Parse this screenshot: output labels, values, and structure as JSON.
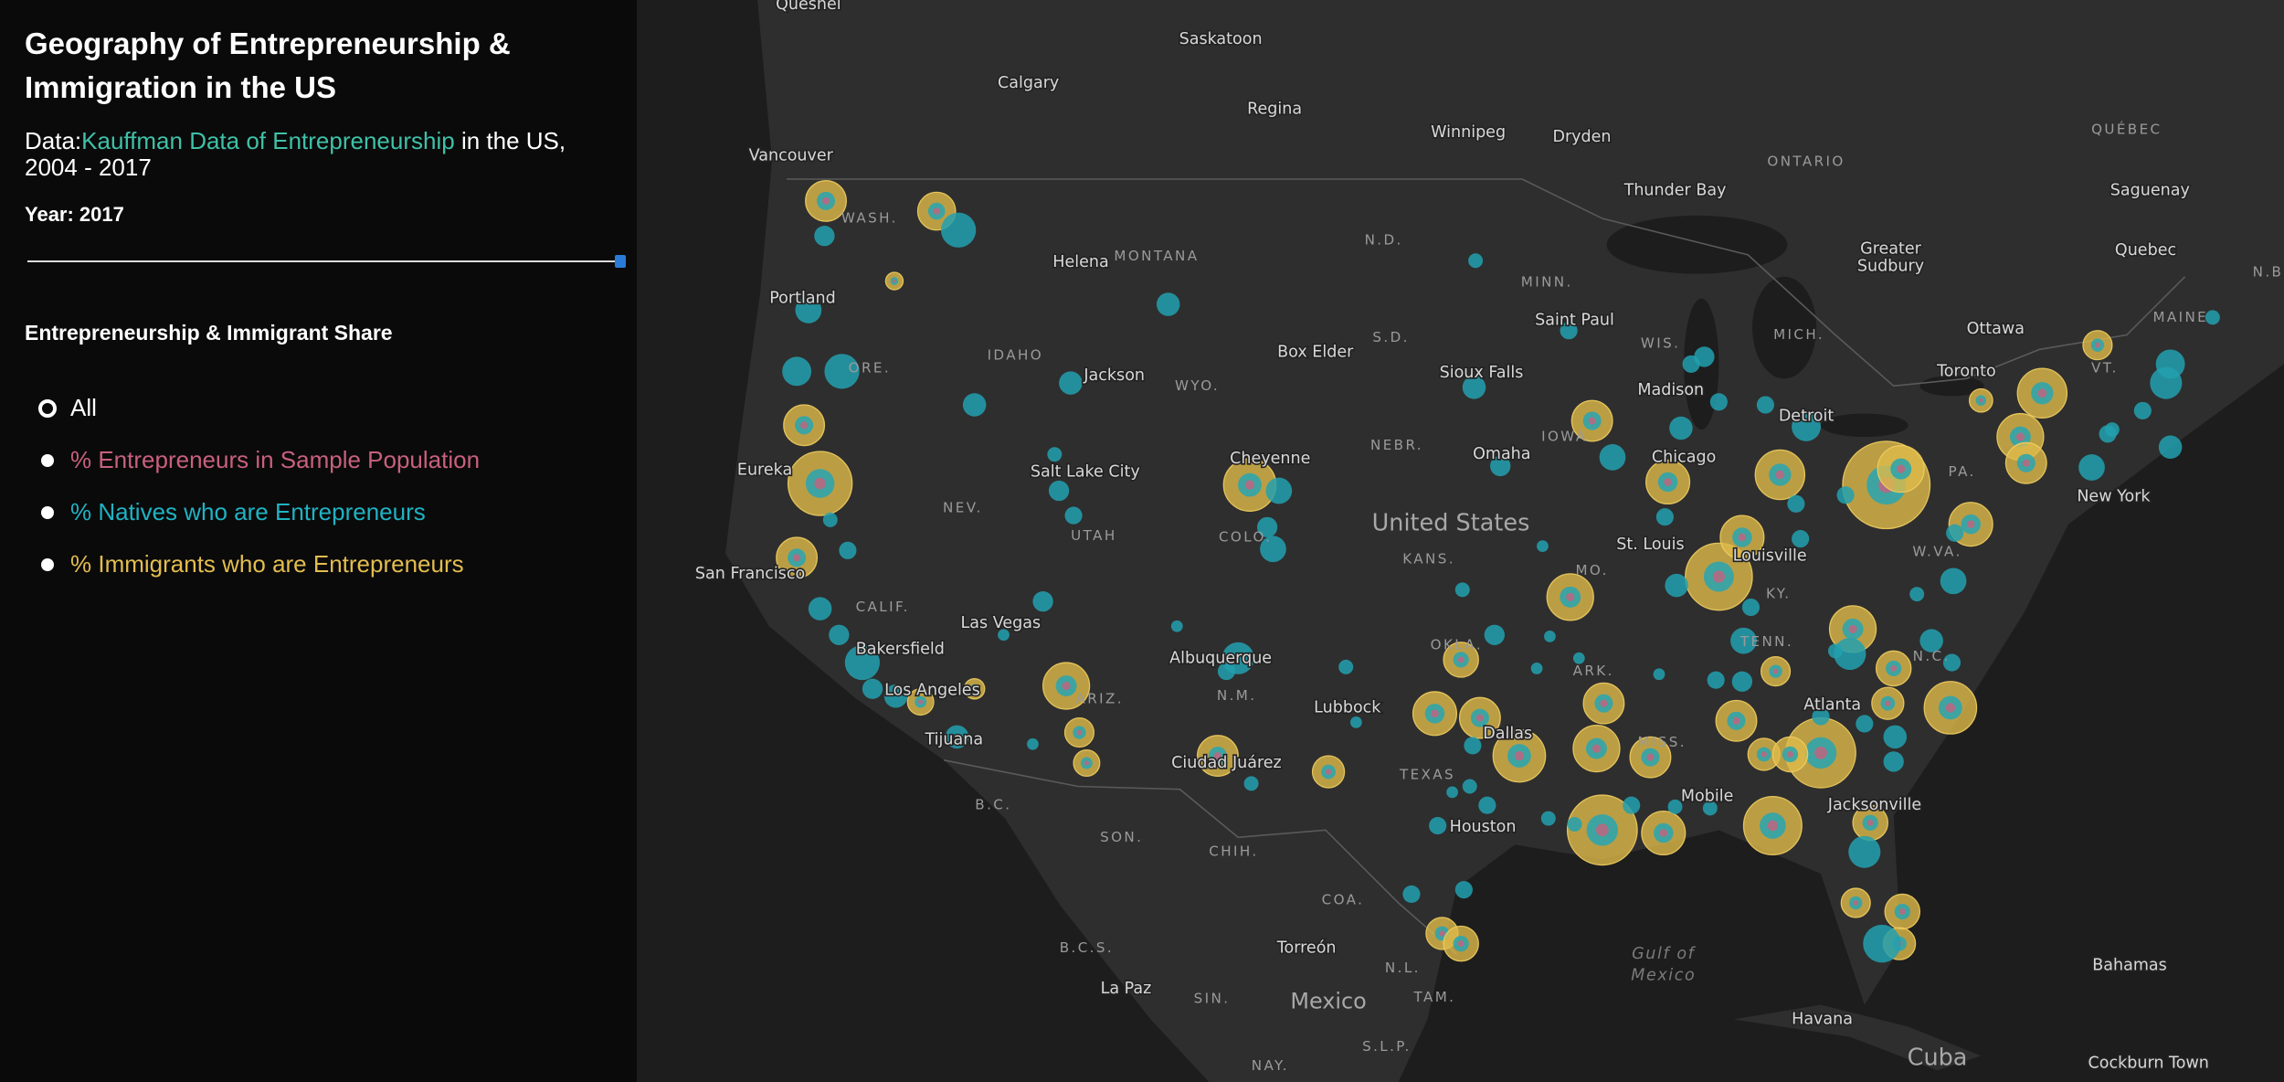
{
  "header": {
    "title": "Geography of Entrepreneurship & Immigration in the US",
    "source_prefix": "Data:",
    "source_link": "Kauffman Data of Entrepreneurship",
    "source_suffix": "in the US, 2004 - 2017",
    "year_label": "Year: 2017"
  },
  "legend": {
    "title": "Entrepreneurship & Immigrant Share",
    "options": [
      {
        "label": "All",
        "color": "#ffffff",
        "selected": true
      },
      {
        "label": "% Entrepreneurs in Sample Population",
        "color": "#c8607e",
        "selected": false
      },
      {
        "label": "% Natives who are Entrepreneurs",
        "color": "#1fb3c4",
        "selected": false
      },
      {
        "label": "% Immigrants who are Entrepreneurs",
        "color": "#e3bd4f",
        "selected": false
      }
    ]
  },
  "map": {
    "places": [
      "Quesnel",
      "Saskatoon",
      "Calgary",
      "Regina",
      "Winnipeg",
      "Dryden",
      "Vancouver",
      "Thunder Bay",
      "Saguenay",
      "Greater",
      "Sudbury",
      "Quebec",
      "Helena",
      "Portland",
      "Saint Paul",
      "Ottawa",
      "Toronto",
      "Box Elder",
      "Sioux Falls",
      "Jackson",
      "Madison",
      "Detroit",
      "Omaha",
      "Chicago",
      "Eureka",
      "Cheyenne",
      "Salt Lake City",
      "New York",
      "St. Louis",
      "Louisville",
      "San Francisco",
      "Las Vegas",
      "Bakersfield",
      "Albuquerque",
      "Los Angeles",
      "Lubbock",
      "Tijuana",
      "Dallas",
      "Atlanta",
      "Ciudad Juárez",
      "Mobile",
      "Jacksonville",
      "Houston",
      "Torreón",
      "La Paz",
      "Bahamas",
      "Havana",
      "Cockburn Town"
    ],
    "regions": [
      "WASH.",
      "MONTANA",
      "N.D.",
      "MINN.",
      "ONTARIO",
      "QUÉBEC",
      "IDAHO",
      "WYO.",
      "S.D.",
      "WIS.",
      "MICH.",
      "ORE.",
      "NEBR.",
      "IOWA",
      "NEV.",
      "UTAH",
      "COLO.",
      "KANS.",
      "MO.",
      "CALIF.",
      "OKLA.",
      "ARK.",
      "TENN.",
      "ARIZ.",
      "N.M.",
      "TEXAS",
      "MISS.",
      "B.C.",
      "SON.",
      "CHIH.",
      "COA.",
      "B.C.S.",
      "N.L.",
      "SIN.",
      "TAM.",
      "S.L.P.",
      "NAY.",
      "VT.",
      "MAINE",
      "PA.",
      "W.VA.",
      "KY.",
      "N.C.",
      "N.B"
    ],
    "countries": [
      "United States",
      "Mexico",
      "Cuba"
    ],
    "water": [
      "Gulf of",
      "Mexico"
    ]
  }
}
